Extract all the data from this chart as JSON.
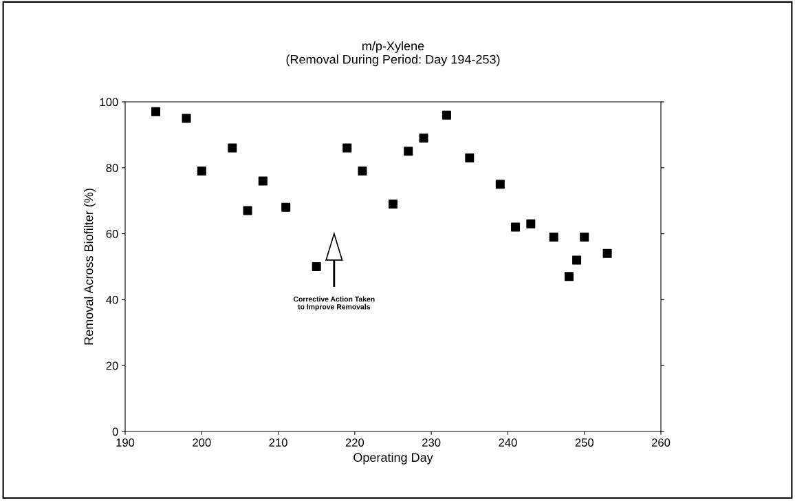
{
  "chart_data": {
    "type": "scatter",
    "title": "m/p-Xylene\n(Removal During Period: Day 194-253)",
    "xlabel": "Operating Day",
    "ylabel": "Removal Across Biofilter (%)",
    "series": [
      {
        "color": "#000000",
        "x": [
          194,
          198,
          200,
          204,
          206,
          208,
          211,
          215,
          219,
          221,
          225,
          227,
          229,
          232,
          235,
          239,
          241,
          243,
          246,
          248,
          249,
          250,
          253
        ],
        "values": [
          97,
          95,
          79,
          86,
          67,
          76,
          68,
          50,
          86,
          79,
          69,
          85,
          89,
          96,
          83,
          75,
          62,
          63,
          59,
          47,
          52,
          59,
          54
        ]
      }
    ],
    "marker": "square",
    "annotations": [
      "Corrective Action Taken\nto Improve Removals"
    ],
    "xlim": [
      190,
      260
    ],
    "xticks": [
      190,
      200,
      210,
      220,
      230,
      240,
      250,
      260
    ],
    "ylim": [
      0,
      100
    ],
    "yticks": [
      0,
      20,
      40,
      60,
      80,
      100
    ],
    "grid": false,
    "legend": false
  }
}
